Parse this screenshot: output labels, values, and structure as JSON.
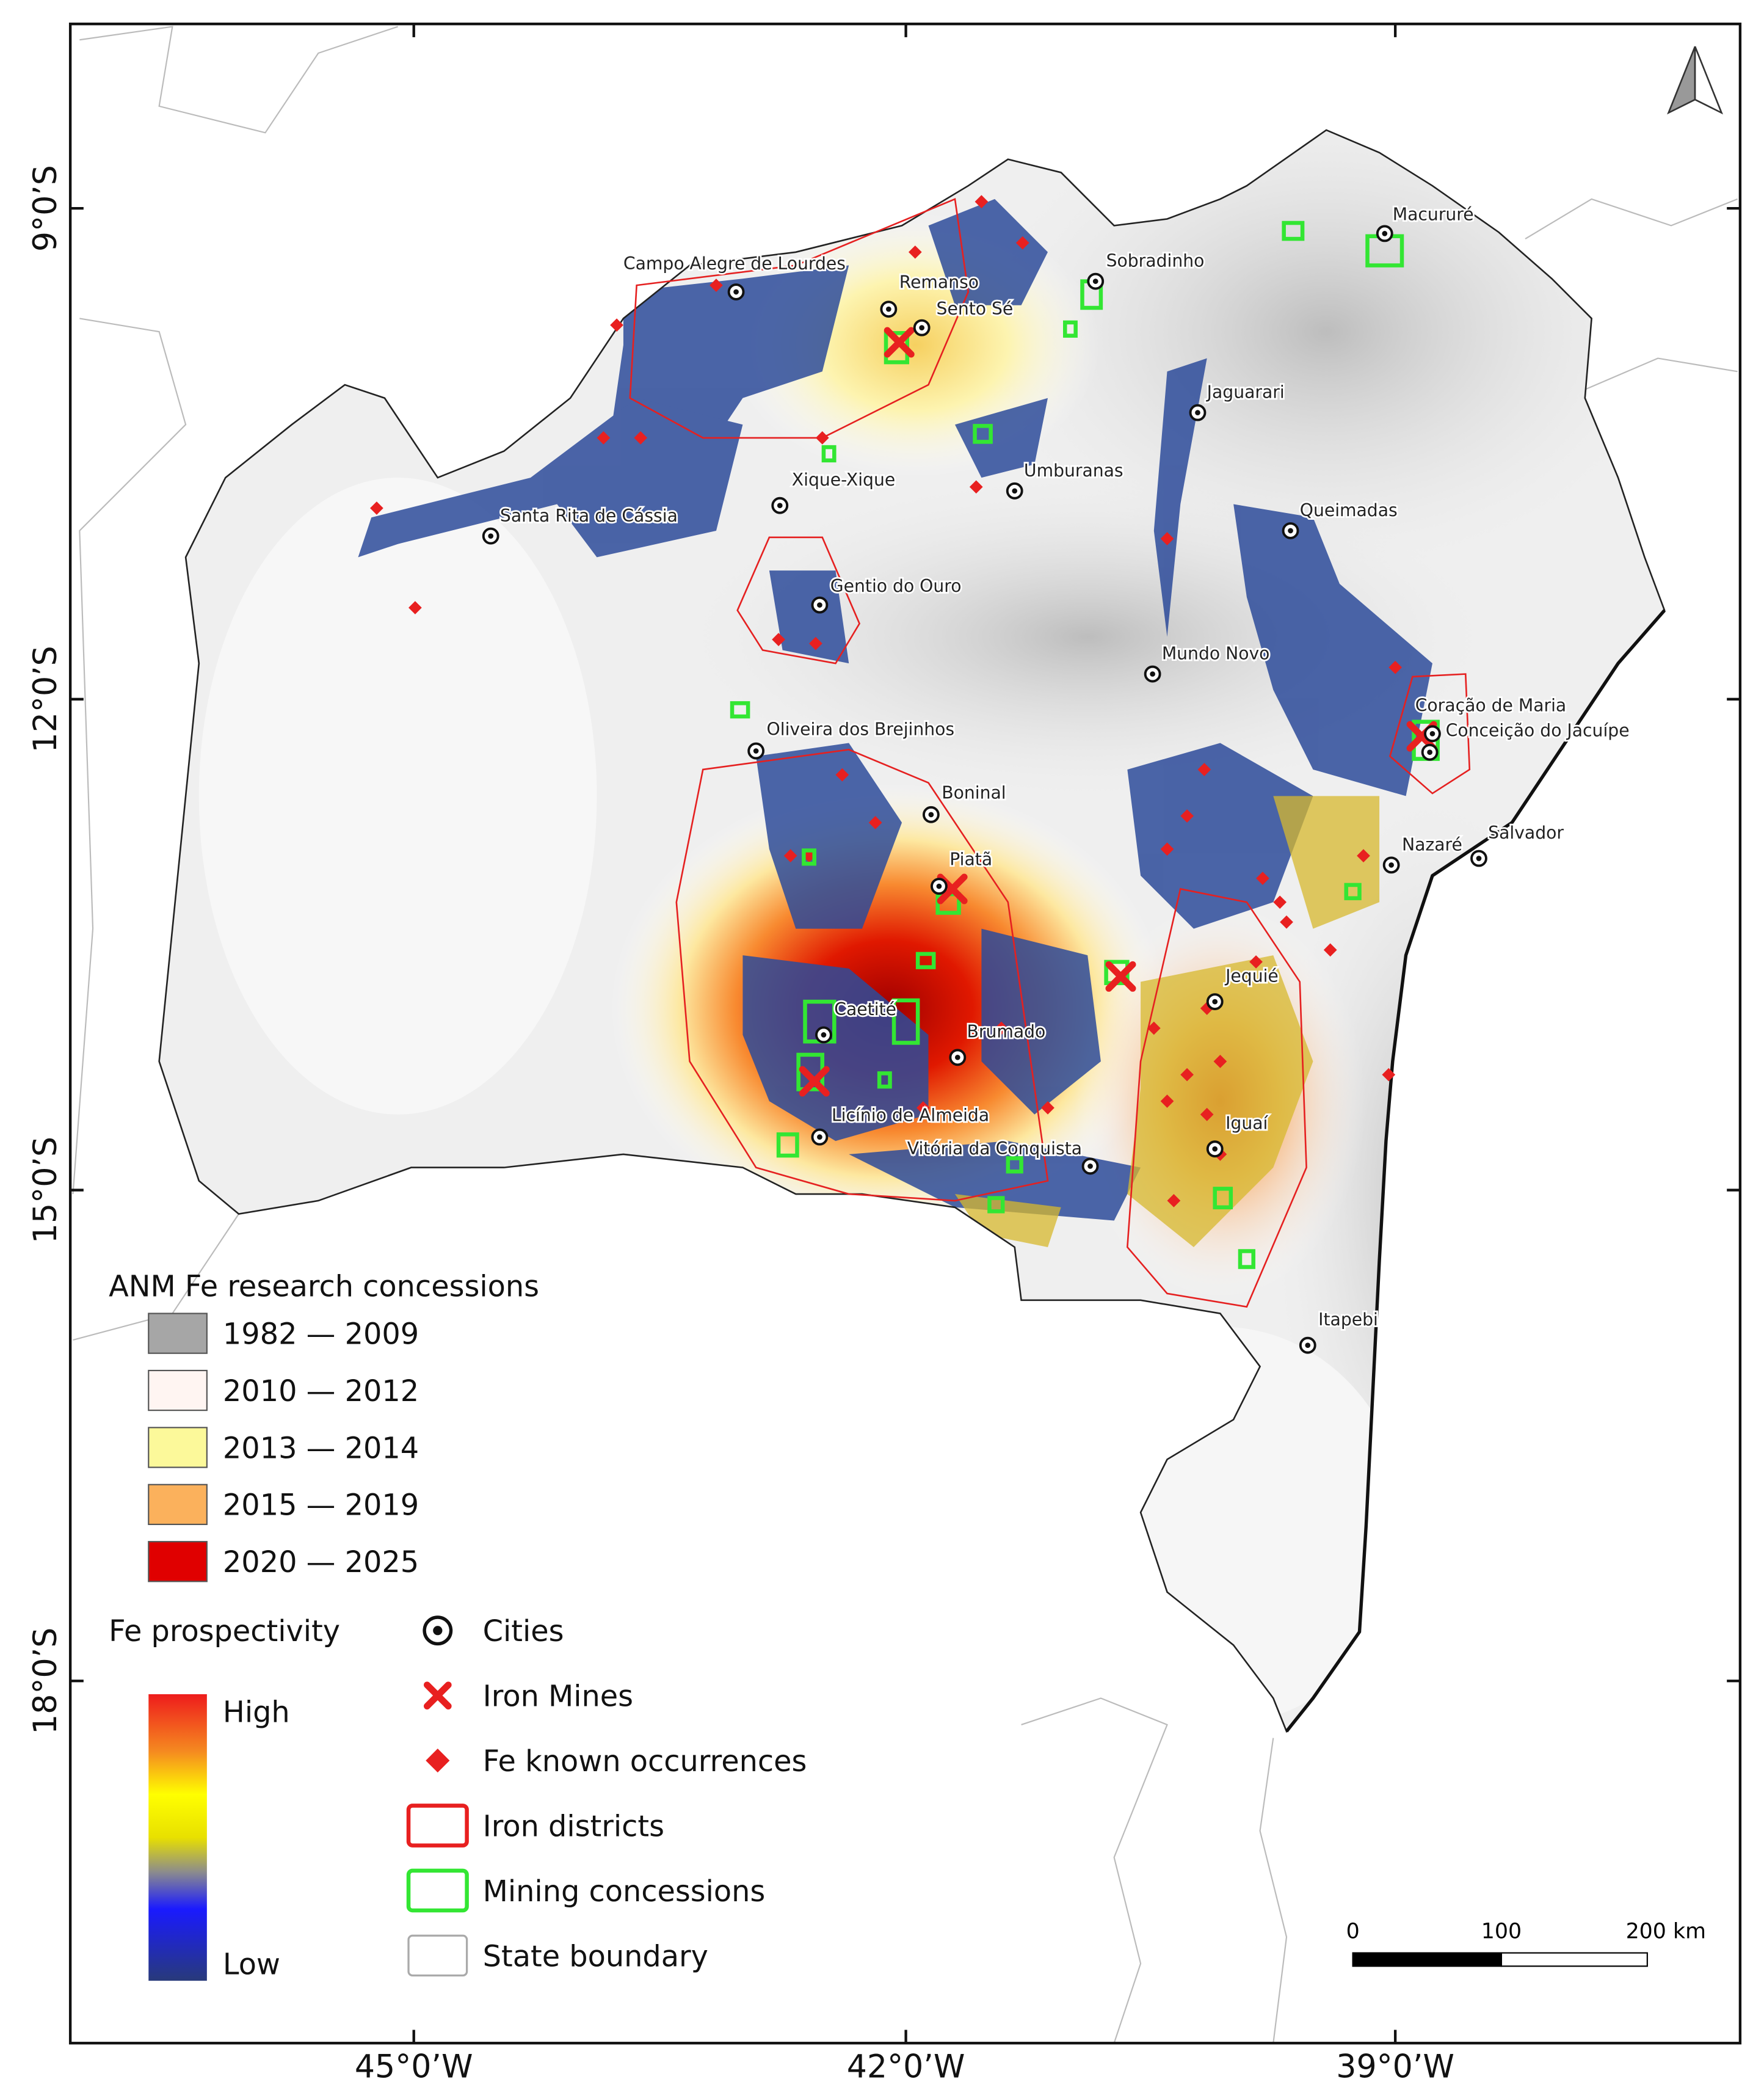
{
  "map": {
    "lat_labels": [
      "9°0’S",
      "12°0’S",
      "15°0’S",
      "18°0’S"
    ],
    "lon_labels": [
      "45°0’W",
      "42°0’W",
      "39°0’W"
    ],
    "cities": [
      "Campo Alegre de Lourdes",
      "Remanso",
      "Sento Sé",
      "Sobradinho",
      "Macururé",
      "Jaguarari",
      "Xique-Xique",
      "Umburanas",
      "Santa Rita de Cássia",
      "Queimadas",
      "Gentio do Ouro",
      "Mundo Novo",
      "Coração de Maria",
      "Conceição do Jacuípe",
      "Oliveira dos Brejinhos",
      "Boninal",
      "Nazaré",
      "Salvador",
      "Piatã",
      "Jequié",
      "Caetité",
      "Brumado",
      "Licínio de Almeida",
      "Iguaí",
      "Vitória da Conquista",
      "Itapebi"
    ],
    "scale_bar": [
      "0",
      "100",
      "200 km"
    ]
  },
  "legend": {
    "concessions": {
      "title": "ANM Fe research concessions",
      "items": [
        {
          "label": "1982 — 2009",
          "color": "#a6a6a6"
        },
        {
          "label": "2010 — 2012",
          "color": "#fff5f2"
        },
        {
          "label": "2013 — 2014",
          "color": "#fcf99a"
        },
        {
          "label": "2015 — 2019",
          "color": "#fbb15c"
        },
        {
          "label": "2020 — 2025",
          "color": "#e00000"
        }
      ]
    },
    "prospectivity": {
      "title": "Fe prospectivity",
      "high": "High",
      "low": "Low"
    },
    "symbols": [
      "Cities",
      "Iron Mines",
      "Fe known occurrences",
      "Iron districts",
      "Mining concessions",
      "State boundary"
    ]
  }
}
